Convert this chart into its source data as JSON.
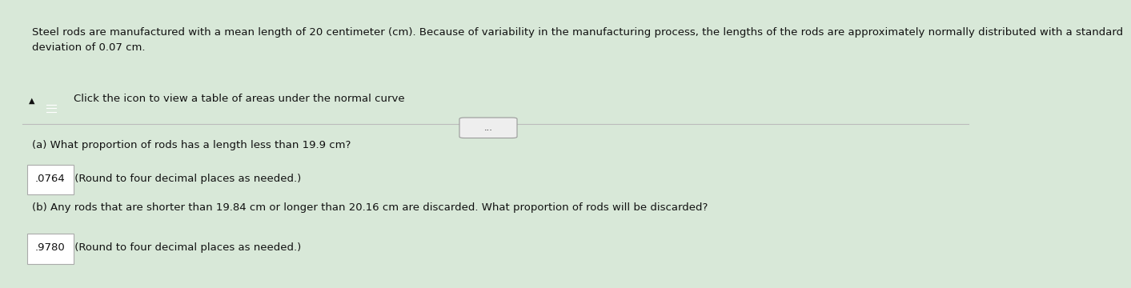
{
  "background_color": "#d8e8d8",
  "header_text": "Steel rods are manufactured with a mean length of 20 centimeter (cm). Because of variability in the manufacturing process, the lengths of the rods are approximately normally distributed with a standard\ndeviation of 0.07 cm.",
  "icon_text": "Click the icon to view a table of areas under the normal curve",
  "dots_button_text": "...",
  "part_a_question": "(a) What proportion of rods has a length less than 19.9 cm?",
  "part_a_answer": ".0764",
  "part_a_suffix": " (Round to four decimal places as needed.)",
  "part_b_question": "(b) Any rods that are shorter than 19.84 cm or longer than 20.16 cm are discarded. What proportion of rods will be discarded?",
  "part_b_answer": ".9780",
  "part_b_suffix": " (Round to four decimal places as needed.)",
  "answer_box_color": "#ffffff",
  "answer_border_color": "#aaaaaa",
  "header_fontsize": 9.5,
  "body_fontsize": 9.5,
  "left_bar_color": "#5a5a5a",
  "top_bar_color": "#4a90c4",
  "text_color": "#111111",
  "icon_square_color": "#1a6dba",
  "divider_color": "#bbbbbb"
}
